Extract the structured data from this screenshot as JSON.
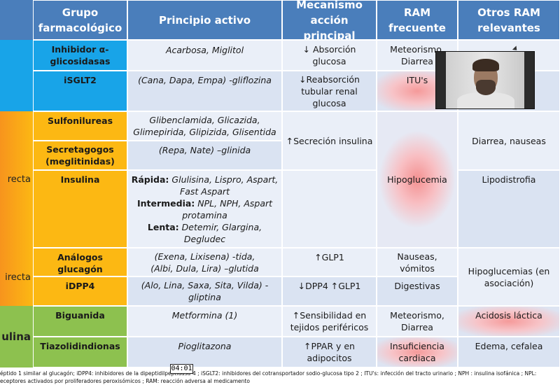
{
  "header": {
    "grupo": "Grupo farmacológico",
    "principio": "Principio activo",
    "mecanismo": "Mecanismo acción principal",
    "ram": "RAM frecuente",
    "otros": "Otros RAM relevantes"
  },
  "left_labels": {
    "directa": "recta",
    "indirecta": "irecta",
    "insulina": "ulina"
  },
  "rows": {
    "inhibidor": {
      "grupo": "Inhibidor α-glicosidasas",
      "principio": "Acarbosa, Miglitol",
      "mecanismo": "↓ Absorción glucosa",
      "ram": "Meteorismo, Diarrea"
    },
    "isglt2": {
      "grupo": "iSGLT2",
      "principio": "(Cana, Dapa, Empa) -gliflozina",
      "mecanismo": "↓Reabsorción tubular renal glucosa",
      "ram": "ITU's"
    },
    "sulfonilureas": {
      "grupo": "Sulfonilureas",
      "principio": "Glibenclamida, Glicazida, Glimepirida, Glipizida, Glisentida"
    },
    "secretagogos": {
      "grupo": "Secretagogos (meglitinidas)",
      "principio": "(Repa, Nate) –glinida"
    },
    "secrecion": {
      "mecanismo": "↑Secreción insulina",
      "ram": "Hipoglucemia",
      "otros": "Diarrea, nauseas"
    },
    "insulina": {
      "grupo": "Insulina",
      "rapida_label": "Rápida:",
      "rapida": "Glulisina, Lispro, Aspart, Fast Aspart",
      "intermedia_label": "Intermedia:",
      "intermedia": "NPL, NPH, Aspart protamina",
      "lenta_label": "Lenta:",
      "lenta": "Detemir, Glargina, Degludec",
      "otros": "Lipodistrofia"
    },
    "glucagon": {
      "grupo": "Análogos glucagón",
      "principio1": "(Exena, Lixisena) -tida,",
      "principio2": "(Albi, Dula, Lira) –glutida",
      "mecanismo": "↑GLP1",
      "ram": "Nauseas, vómitos",
      "otros": "Hipoglucemias (en asociación)"
    },
    "idpp4": {
      "grupo": "iDPP4",
      "principio": "(Alo, Lina, Saxa, Sita, Vilda) -gliptina",
      "mecanismo": "↓DPP4 ↑GLP1",
      "ram": "Digestivas"
    },
    "biguanida": {
      "grupo": "Biguanida",
      "principio": "Metformina (1)",
      "mecanismo": "↑Sensibilidad en tejidos periféricos",
      "ram": "Meteorismo, Diarrea",
      "otros": "Acidosis láctica"
    },
    "tiazo": {
      "grupo": "Tiazolidindionas",
      "principio": "Pioglitazona",
      "mecanismo": "↑PPAR y en adipocitos",
      "ram": "Insuficiencia cardiaca",
      "otros": "Edema, cefalea"
    }
  },
  "footer": {
    "line1": "éptido 1 similar al glucagón;  iDPP4: inhibidores de la dipeptidilpeptidasa-4 ;  iSGLT2: inhibidores del cotransportador sodio-glucosa tipo 2 ;  ITU's: infección del tracto urinario ;   NPH : insulina isofánica ;  NPL:",
    "line2": "eceptores activados por proliferadores peroxisómicos ; RAM: reacción adversa al medicamento"
  },
  "timer": "04:01",
  "colors": {
    "header": "#4a7ebb",
    "blue_group": "#18a4e8",
    "orange_group": "#fcb813",
    "green_group": "#8dc14f",
    "light_cell": "#dae3f2",
    "highlight": "#f59a9a"
  }
}
